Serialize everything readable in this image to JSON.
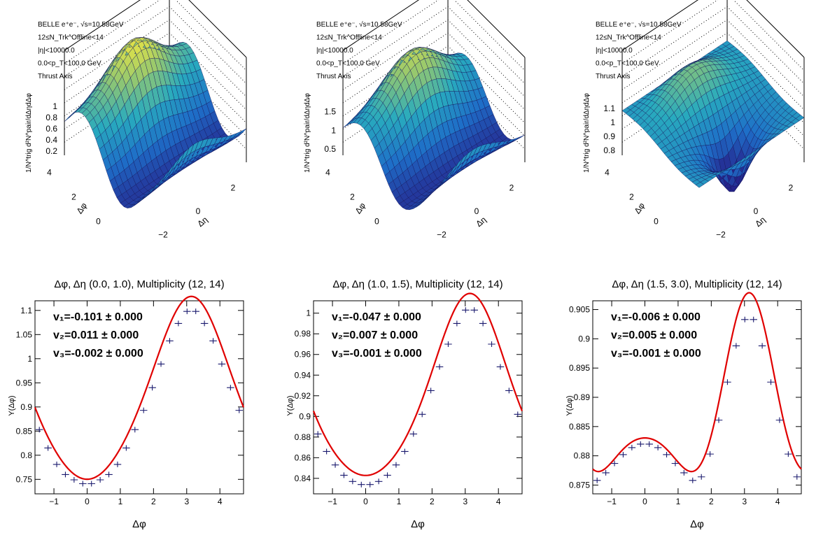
{
  "surfaces": [
    {
      "annotations": [
        "BELLE e⁺e⁻, √s=10.58GeV",
        "12≤N_Trk^Offline<14",
        "|η|<10000.0",
        "0.0<p_T<100.0 GeV",
        "Thrust Axis"
      ],
      "zlabel": "1/N^trig d²N^pair/dΔηdΔφ",
      "zticks": [
        "0.2",
        "0.4",
        "0.6",
        "0.8",
        "1"
      ],
      "phi_ticks": [
        "4",
        "2",
        "0"
      ],
      "eta_ticks": [
        "−2",
        "0",
        "2"
      ],
      "phi_label": "Δφ",
      "eta_label": "Δη"
    },
    {
      "annotations": [
        "BELLE e⁺e⁻, √s=10.58GeV",
        "12≤N_Trk^Offline<14",
        "|η|<10000.0",
        "0.0<p_T<100.0 GeV",
        "Thrust Axis"
      ],
      "zlabel": "1/N^trig d²N^pair/dΔηdΔφ",
      "zticks": [
        "0.5",
        "1",
        "1.5"
      ],
      "phi_ticks": [
        "4",
        "2",
        "0"
      ],
      "eta_ticks": [
        "−2",
        "0",
        "2"
      ],
      "phi_label": "Δφ",
      "eta_label": "Δη"
    },
    {
      "annotations": [
        "BELLE e⁺e⁻, √s=10.58GeV",
        "12≤N_Trk^Offline<14",
        "|η|<10000.0",
        "0.0<p_T<100.0 GeV",
        "Thrust Axis"
      ],
      "zlabel": "1/N^trig d²N^pair/dΔηdΔφ",
      "zticks": [
        "0.8",
        "0.9",
        "1",
        "1.1"
      ],
      "phi_ticks": [
        "4",
        "2",
        "0"
      ],
      "eta_ticks": [
        "−2",
        "0",
        "2"
      ],
      "phi_label": "Δφ",
      "eta_label": "Δη"
    }
  ],
  "chart_data": [
    {
      "type": "scatter",
      "title": "Δφ, Δη (0.0, 1.0), Multiplicity (12, 14)",
      "xlabel": "Δφ",
      "ylabel": "Y(Δφ)",
      "xlim": [
        -1.5708,
        4.7124
      ],
      "ylim": [
        0.72,
        1.12
      ],
      "xticks": [
        -1,
        0,
        1,
        2,
        3,
        4
      ],
      "yticks": [
        0.75,
        0.8,
        0.85,
        0.9,
        0.95,
        1,
        1.05,
        1.1
      ],
      "ytick_labels": [
        "0.75",
        "0.8",
        "0.85",
        "0.9",
        "0.95",
        "1",
        "1.05",
        "1.1"
      ],
      "v_labels": [
        "v₁=-0.101 ± 0.000",
        "v₂=0.011 ± 0.000",
        "v₃=-0.002 ± 0.000"
      ],
      "fit": {
        "a0": 0.9194,
        "v1": -0.101,
        "v2": 0.011,
        "v3": -0.002
      },
      "series": [
        {
          "x": [
            -1.4399,
            -1.1781,
            -0.9163,
            -0.6545,
            -0.3927,
            -0.1309,
            0.1309,
            0.3927,
            0.6545,
            0.9163,
            1.1781,
            1.4399,
            1.7017,
            1.9635,
            2.2253,
            2.4871,
            2.7489,
            3.0107,
            3.2725,
            3.5343,
            3.7961,
            4.0579,
            4.3197,
            4.5815
          ],
          "y": [
            0.853,
            0.815,
            0.781,
            0.76,
            0.749,
            0.741,
            0.741,
            0.749,
            0.76,
            0.781,
            0.815,
            0.853,
            0.893,
            0.94,
            0.989,
            1.037,
            1.073,
            1.098,
            1.098,
            1.073,
            1.037,
            0.989,
            0.94,
            0.893
          ]
        }
      ]
    },
    {
      "type": "scatter",
      "title": "Δφ, Δη (1.0, 1.5), Multiplicity (12, 14)",
      "xlabel": "Δφ",
      "ylabel": "Y(Δφ)",
      "xlim": [
        -1.5708,
        4.7124
      ],
      "ylim": [
        0.825,
        1.012
      ],
      "xticks": [
        -1,
        0,
        1,
        2,
        3,
        4
      ],
      "yticks": [
        0.84,
        0.86,
        0.88,
        0.9,
        0.92,
        0.94,
        0.96,
        0.98,
        1
      ],
      "ytick_labels": [
        "0.84",
        "0.86",
        "0.88",
        "0.9",
        "0.92",
        "0.94",
        "0.96",
        "0.98",
        "1"
      ],
      "v_labels": [
        "v₁=-0.047 ± 0.000",
        "v₂=0.007 ± 0.000",
        "v₃=-0.001 ± 0.000"
      ],
      "fit": {
        "a0": 0.9181,
        "v1": -0.047,
        "v2": 0.007,
        "v3": -0.001
      },
      "series": [
        {
          "x": [
            -1.4399,
            -1.1781,
            -0.9163,
            -0.6545,
            -0.3927,
            -0.1309,
            0.1309,
            0.3927,
            0.6545,
            0.9163,
            1.1781,
            1.4399,
            1.7017,
            1.9635,
            2.2253,
            2.4871,
            2.7489,
            3.0107,
            3.2725,
            3.5343,
            3.7961,
            4.0579,
            4.3197,
            4.5815
          ],
          "y": [
            0.883,
            0.866,
            0.853,
            0.843,
            0.837,
            0.834,
            0.834,
            0.837,
            0.843,
            0.853,
            0.866,
            0.883,
            0.902,
            0.925,
            0.948,
            0.97,
            0.99,
            1.003,
            1.003,
            0.99,
            0.97,
            0.948,
            0.925,
            0.902
          ]
        }
      ]
    },
    {
      "type": "scatter",
      "title": "Δφ, Δη (1.5, 3.0), Multiplicity (12, 14)",
      "xlabel": "Δφ",
      "ylabel": "Y(Δφ)",
      "xlim": [
        -1.5708,
        4.7124
      ],
      "ylim": [
        0.8735,
        0.9065
      ],
      "xticks": [
        -1,
        0,
        1,
        2,
        3,
        4
      ],
      "yticks": [
        0.875,
        0.88,
        0.885,
        0.89,
        0.895,
        0.9,
        0.905
      ],
      "ytick_labels": [
        "0.875",
        "0.88",
        "0.885",
        "0.89",
        "0.895",
        "0.9",
        "0.905"
      ],
      "v_labels": [
        "v₁=-0.006 ± 0.000",
        "v₂=0.005 ± 0.000",
        "v₃=-0.001 ± 0.000"
      ],
      "fit": {
        "a0": 0.8866,
        "v1": -0.006,
        "v2": 0.005,
        "v3": -0.001
      },
      "series": [
        {
          "x": [
            -1.4399,
            -1.1781,
            -0.9163,
            -0.6545,
            -0.3927,
            -0.1309,
            0.1309,
            0.3927,
            0.6545,
            0.9163,
            1.1781,
            1.4399,
            1.7017,
            1.9635,
            2.2253,
            2.4871,
            2.7489,
            3.0107,
            3.2725,
            3.5343,
            3.7961,
            4.0579,
            4.3197,
            4.5815
          ],
          "y": [
            0.8758,
            0.8771,
            0.8787,
            0.8802,
            0.8814,
            0.882,
            0.882,
            0.8814,
            0.8802,
            0.8787,
            0.8771,
            0.8758,
            0.8764,
            0.8803,
            0.8861,
            0.8926,
            0.8988,
            0.9033,
            0.9033,
            0.8988,
            0.8926,
            0.8861,
            0.8803,
            0.8764
          ]
        }
      ]
    }
  ]
}
